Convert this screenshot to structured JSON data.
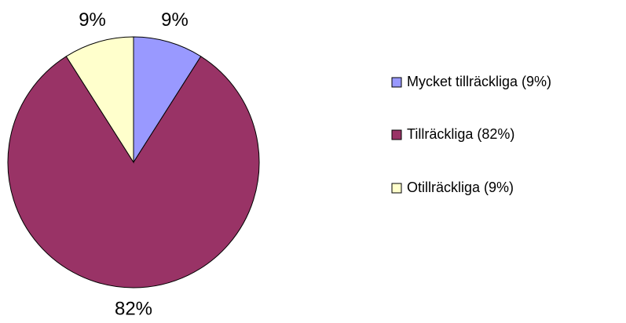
{
  "chart_data": {
    "type": "pie",
    "categories": [
      "Mycket tillräckliga (9%)",
      "Tillräckliga (82%)",
      "Otillräckliga (9%)"
    ],
    "values": [
      9,
      82,
      9
    ],
    "value_labels": [
      "9%",
      "82%",
      "9%"
    ],
    "colors": [
      "#9999ff",
      "#993366",
      "#ffffcc"
    ],
    "legend": "right"
  }
}
